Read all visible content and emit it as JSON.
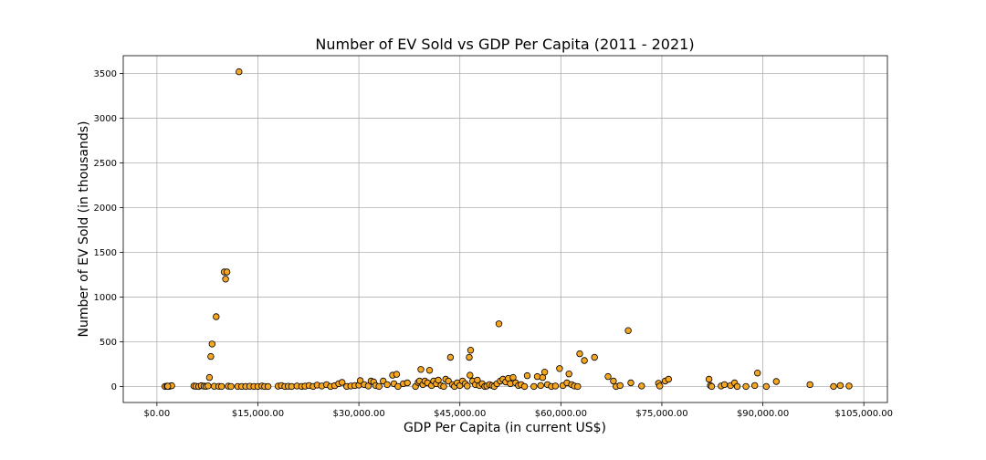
{
  "chart_data": {
    "type": "scatter",
    "title": "Number of EV Sold vs GDP Per Capita (2011 - 2021)",
    "xlabel": "GDP Per Capita (in current US$)",
    "ylabel": "Number of EV Sold (in thousands)",
    "xlim": [
      -5000,
      108500
    ],
    "ylim": [
      -180,
      3700
    ],
    "x_ticks": [
      0,
      15000,
      30000,
      45000,
      60000,
      75000,
      90000,
      105000
    ],
    "x_tick_labels": [
      "$0.00",
      "$15,000.00",
      "$30,000.00",
      "$45,000.00",
      "$60,000.00",
      "$75,000.00",
      "$90,000.00",
      "$105,000.00"
    ],
    "y_ticks": [
      0,
      500,
      1000,
      1500,
      2000,
      2500,
      3000,
      3500
    ],
    "y_tick_labels": [
      "0",
      "500",
      "1000",
      "1500",
      "2000",
      "2500",
      "3000",
      "3500"
    ],
    "grid": true,
    "marker_color": "#f5a623",
    "marker_edge_color": "#000000",
    "series": [
      {
        "points": [
          [
            1200,
            0
          ],
          [
            1500,
            3
          ],
          [
            1800,
            1
          ],
          [
            2000,
            5
          ],
          [
            2200,
            8
          ],
          [
            1600,
            2
          ],
          [
            5500,
            5
          ],
          [
            5800,
            2
          ],
          [
            6200,
            0
          ],
          [
            6600,
            8
          ],
          [
            7000,
            3
          ],
          [
            7300,
            1
          ],
          [
            7600,
            6
          ],
          [
            7800,
            100
          ],
          [
            8000,
            335
          ],
          [
            8200,
            475
          ],
          [
            8800,
            780
          ],
          [
            8500,
            2
          ],
          [
            9200,
            1
          ],
          [
            9600,
            0
          ],
          [
            10000,
            1280
          ],
          [
            10200,
            1200
          ],
          [
            10400,
            1280
          ],
          [
            10600,
            3
          ],
          [
            11000,
            0
          ],
          [
            12200,
            3520
          ],
          [
            12000,
            0
          ],
          [
            12600,
            0
          ],
          [
            13200,
            0
          ],
          [
            13800,
            2
          ],
          [
            14400,
            0
          ],
          [
            15000,
            0
          ],
          [
            15600,
            5
          ],
          [
            16000,
            0
          ],
          [
            16500,
            0
          ],
          [
            18000,
            3
          ],
          [
            18500,
            10
          ],
          [
            19000,
            0
          ],
          [
            19500,
            2
          ],
          [
            20000,
            0
          ],
          [
            20800,
            5
          ],
          [
            21500,
            0
          ],
          [
            22000,
            3
          ],
          [
            22600,
            10
          ],
          [
            23200,
            0
          ],
          [
            23800,
            15
          ],
          [
            24500,
            5
          ],
          [
            25200,
            20
          ],
          [
            25800,
            0
          ],
          [
            26400,
            8
          ],
          [
            27000,
            30
          ],
          [
            27500,
            45
          ],
          [
            28200,
            0
          ],
          [
            28800,
            5
          ],
          [
            29400,
            10
          ],
          [
            30000,
            15
          ],
          [
            30200,
            65
          ],
          [
            30800,
            20
          ],
          [
            31400,
            5
          ],
          [
            31800,
            60
          ],
          [
            32200,
            50
          ],
          [
            32500,
            10
          ],
          [
            33000,
            0
          ],
          [
            33600,
            60
          ],
          [
            34200,
            20
          ],
          [
            35000,
            125
          ],
          [
            35600,
            135
          ],
          [
            35200,
            30
          ],
          [
            35800,
            0
          ],
          [
            36600,
            30
          ],
          [
            37200,
            40
          ],
          [
            38400,
            0
          ],
          [
            38800,
            45
          ],
          [
            39000,
            60
          ],
          [
            39200,
            190
          ],
          [
            39500,
            20
          ],
          [
            39800,
            60
          ],
          [
            40200,
            40
          ],
          [
            40500,
            180
          ],
          [
            40800,
            10
          ],
          [
            41100,
            60
          ],
          [
            41500,
            30
          ],
          [
            41800,
            70
          ],
          [
            42200,
            10
          ],
          [
            42600,
            0
          ],
          [
            42900,
            80
          ],
          [
            43300,
            60
          ],
          [
            43600,
            325
          ],
          [
            43900,
            20
          ],
          [
            44200,
            0
          ],
          [
            44600,
            40
          ],
          [
            45000,
            10
          ],
          [
            45400,
            60
          ],
          [
            45800,
            30
          ],
          [
            46100,
            5
          ],
          [
            46400,
            325
          ],
          [
            46600,
            405
          ],
          [
            46500,
            125
          ],
          [
            46900,
            60
          ],
          [
            47300,
            20
          ],
          [
            47600,
            70
          ],
          [
            47900,
            10
          ],
          [
            48300,
            30
          ],
          [
            48700,
            0
          ],
          [
            49000,
            5
          ],
          [
            49400,
            20
          ],
          [
            49800,
            10
          ],
          [
            50100,
            0
          ],
          [
            50500,
            30
          ],
          [
            50800,
            700
          ],
          [
            51000,
            60
          ],
          [
            51400,
            80
          ],
          [
            51800,
            50
          ],
          [
            52200,
            90
          ],
          [
            52500,
            30
          ],
          [
            52900,
            100
          ],
          [
            53300,
            40
          ],
          [
            53700,
            10
          ],
          [
            54100,
            20
          ],
          [
            54600,
            0
          ],
          [
            55000,
            120
          ],
          [
            56000,
            0
          ],
          [
            56500,
            110
          ],
          [
            57000,
            10
          ],
          [
            57300,
            100
          ],
          [
            57600,
            160
          ],
          [
            58000,
            20
          ],
          [
            58600,
            0
          ],
          [
            59200,
            5
          ],
          [
            59800,
            200
          ],
          [
            60300,
            10
          ],
          [
            60900,
            40
          ],
          [
            61200,
            140
          ],
          [
            61600,
            20
          ],
          [
            62000,
            5
          ],
          [
            62500,
            0
          ],
          [
            62800,
            365
          ],
          [
            63500,
            290
          ],
          [
            65000,
            325
          ],
          [
            67000,
            110
          ],
          [
            67800,
            60
          ],
          [
            68200,
            0
          ],
          [
            68800,
            10
          ],
          [
            70000,
            625
          ],
          [
            70400,
            40
          ],
          [
            72000,
            5
          ],
          [
            74500,
            35
          ],
          [
            74700,
            5
          ],
          [
            75500,
            60
          ],
          [
            76000,
            80
          ],
          [
            82000,
            80
          ],
          [
            82200,
            10
          ],
          [
            82400,
            0
          ],
          [
            83800,
            5
          ],
          [
            84300,
            20
          ],
          [
            85200,
            10
          ],
          [
            85800,
            40
          ],
          [
            86200,
            0
          ],
          [
            87500,
            0
          ],
          [
            88800,
            10
          ],
          [
            89200,
            150
          ],
          [
            90500,
            0
          ],
          [
            92000,
            55
          ],
          [
            97000,
            20
          ],
          [
            100500,
            0
          ],
          [
            101500,
            10
          ],
          [
            102800,
            5
          ]
        ]
      }
    ]
  }
}
